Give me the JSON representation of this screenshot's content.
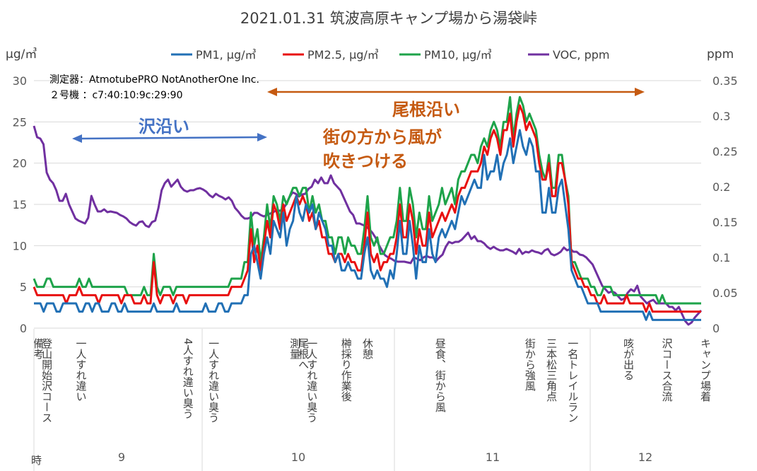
{
  "chart_data": {
    "type": "line",
    "title": "2021.01.31 筑波高原キャンプ場から湯袋峠",
    "ylabel_left": "μg/㎥",
    "ylabel_right": "ppm",
    "ylim_left": [
      0,
      30
    ],
    "ylim_right": [
      0,
      0.35
    ],
    "yticks_left": [
      "0",
      "5",
      "10",
      "15",
      "20",
      "25",
      "30"
    ],
    "yticks_right": [
      "0",
      "0.05",
      "0.1",
      "0.15",
      "0.2",
      "0.25",
      "0.3",
      "0.35"
    ],
    "grid": true,
    "legend_position": "top",
    "device_info": [
      "測定器：AtmotubePRO NotAnotherOne Inc.",
      "２号機 ：c7:40:10:9c:29:90"
    ],
    "annotations": {
      "sawazoi": "沢沿い",
      "onezoi": "尾根沿い",
      "wind_line1": "街の方から風が",
      "wind_line2": "吹きつける"
    },
    "hour_axis_label": "時",
    "hours": [
      "9",
      "10",
      "11",
      "12"
    ],
    "events": [
      {
        "x": 0,
        "text": "備考"
      },
      {
        "x": 2,
        "text": "登山開始沢コース"
      },
      {
        "x": 10,
        "text": "一人すれ違い"
      },
      {
        "x": 35,
        "text": "4人すれ違い臭う"
      },
      {
        "x": 41,
        "text": "一人すれ違い臭う"
      },
      {
        "x": 60,
        "text": "測量"
      },
      {
        "x": 62,
        "text": "尾根へ"
      },
      {
        "x": 64,
        "text": "一人すれ違い臭う"
      },
      {
        "x": 72,
        "text": "榊採り作業後"
      },
      {
        "x": 77,
        "text": "休憩"
      },
      {
        "x": 94,
        "text": "昼食、街から風"
      },
      {
        "x": 115,
        "text": "街から強風"
      },
      {
        "x": 120,
        "text": "三本松三角点"
      },
      {
        "x": 125,
        "text": "一名トレイルラン"
      },
      {
        "x": 138,
        "text": "咳が出る"
      },
      {
        "x": 147,
        "text": "沢コース合流"
      },
      {
        "x": 156,
        "text": "キャンプ場着"
      }
    ],
    "series": [
      {
        "name": "PM1, μg/㎥",
        "axis": "left",
        "color": "#2170b5",
        "values": [
          3,
          3,
          3,
          2,
          3,
          3,
          3,
          2,
          2,
          3,
          3,
          3,
          3,
          3,
          2,
          2,
          3,
          3,
          2,
          3,
          3,
          2,
          2,
          2,
          3,
          3,
          2,
          2,
          3,
          2,
          2,
          2,
          2,
          2,
          2,
          2,
          2,
          3,
          2,
          2,
          2,
          2,
          2,
          2,
          3,
          2,
          2,
          2,
          2,
          2,
          2,
          2,
          2,
          3,
          2,
          2,
          2,
          3,
          3,
          2,
          2,
          3,
          3,
          3,
          3,
          4,
          4,
          9,
          10,
          8,
          6,
          9,
          11,
          9,
          13,
          12,
          11,
          14,
          10,
          12,
          13,
          16,
          14,
          13,
          15,
          14,
          15,
          12,
          14,
          13,
          12,
          10,
          10,
          8,
          9,
          7,
          7,
          8,
          7,
          7,
          6,
          6,
          9,
          11,
          7,
          6,
          7,
          6,
          6,
          5,
          7,
          6,
          9,
          13,
          9,
          9,
          13,
          10,
          6,
          10,
          8,
          8,
          12,
          9,
          8,
          11,
          12,
          11,
          12,
          13,
          12,
          14,
          16,
          15,
          16,
          17,
          18,
          17,
          17,
          21,
          18,
          19,
          19,
          21,
          18,
          20,
          21,
          23,
          20,
          22,
          24,
          22,
          21,
          23,
          22,
          19,
          19,
          14,
          14,
          17,
          14,
          14,
          17,
          18,
          15,
          12,
          7,
          6,
          5,
          5,
          4,
          3,
          3,
          3,
          3,
          2,
          2,
          2,
          2,
          2,
          2,
          2,
          2,
          2,
          2,
          2,
          2,
          2,
          2,
          1,
          2,
          1,
          1,
          1,
          1,
          1,
          1,
          1,
          1,
          1,
          1,
          1,
          1,
          1,
          1,
          1,
          1
        ]
      },
      {
        "name": "PM2.5, μg/㎥",
        "axis": "left",
        "color": "#e81010",
        "values": [
          5,
          4,
          4,
          4,
          4,
          4,
          4,
          4,
          4,
          4,
          3,
          4,
          4,
          4,
          5,
          4,
          4,
          4,
          4,
          4,
          3,
          4,
          4,
          4,
          4,
          4,
          4,
          3,
          4,
          4,
          4,
          3,
          3,
          3,
          4,
          3,
          3,
          8,
          4,
          3,
          4,
          4,
          4,
          3,
          4,
          4,
          4,
          3,
          4,
          4,
          4,
          4,
          4,
          4,
          4,
          4,
          4,
          4,
          4,
          4,
          4,
          5,
          5,
          5,
          5,
          6,
          7,
          12,
          8,
          10,
          7,
          10,
          13,
          11,
          15,
          14,
          12,
          15,
          13,
          14,
          15,
          16,
          15,
          16,
          15,
          13,
          14,
          12,
          13,
          11,
          11,
          9,
          9,
          8,
          9,
          9,
          8,
          9,
          8,
          8,
          7,
          7,
          10,
          14,
          9,
          8,
          9,
          7,
          8,
          8,
          9,
          9,
          11,
          15,
          11,
          11,
          15,
          13,
          9,
          12,
          10,
          10,
          14,
          11,
          12,
          13,
          14,
          13,
          14,
          15,
          14,
          16,
          17,
          17,
          18,
          19,
          19,
          19,
          20,
          22,
          21,
          23,
          24,
          23,
          21,
          24,
          24,
          26,
          22,
          25,
          27,
          26,
          24,
          25,
          24,
          23,
          20,
          18,
          18,
          20,
          16,
          16,
          20,
          20,
          18,
          15,
          8,
          7,
          6,
          6,
          5,
          5,
          4,
          4,
          3,
          3,
          4,
          3,
          3,
          3,
          3,
          3,
          3,
          4,
          3,
          3,
          3,
          3,
          3,
          2,
          3,
          2,
          2,
          2,
          2,
          2,
          2,
          2,
          2,
          2,
          2,
          2,
          2,
          2,
          2,
          2,
          2
        ]
      },
      {
        "name": "PM10, μg/㎥",
        "axis": "left",
        "color": "#1ea34a",
        "values": [
          6,
          5,
          5,
          5,
          6,
          6,
          5,
          5,
          5,
          5,
          5,
          5,
          5,
          5,
          6,
          5,
          5,
          6,
          5,
          5,
          5,
          5,
          5,
          5,
          5,
          5,
          5,
          5,
          5,
          4,
          4,
          4,
          4,
          4,
          5,
          4,
          4,
          9,
          5,
          4,
          5,
          5,
          5,
          4,
          5,
          5,
          5,
          5,
          5,
          5,
          5,
          5,
          5,
          5,
          5,
          5,
          5,
          5,
          5,
          5,
          5,
          6,
          6,
          6,
          6,
          8,
          8,
          14,
          10,
          12,
          8,
          11,
          15,
          12,
          16,
          15,
          13,
          16,
          15,
          16,
          17,
          17,
          16,
          17,
          17,
          14,
          16,
          14,
          15,
          13,
          13,
          11,
          11,
          9,
          11,
          11,
          9,
          11,
          10,
          10,
          9,
          9,
          12,
          16,
          11,
          10,
          11,
          9,
          9,
          10,
          11,
          11,
          13,
          17,
          13,
          13,
          17,
          15,
          11,
          14,
          12,
          12,
          16,
          13,
          14,
          15,
          17,
          15,
          16,
          17,
          15,
          18,
          19,
          19,
          20,
          21,
          21,
          20,
          22,
          23,
          22,
          24,
          25,
          24,
          22,
          25,
          25,
          28,
          23,
          26,
          28,
          27,
          25,
          26,
          25,
          24,
          21,
          19,
          18,
          21,
          17,
          17,
          21,
          21,
          18,
          16,
          8,
          8,
          7,
          6,
          6,
          6,
          5,
          5,
          4,
          4,
          5,
          5,
          5,
          4,
          4,
          4,
          4,
          4,
          4,
          4,
          4,
          4,
          4,
          4,
          4,
          4,
          4,
          3,
          4,
          3,
          3,
          3,
          3,
          3,
          3,
          3,
          3,
          3,
          3,
          3,
          3
        ]
      },
      {
        "name": "VOC, ppm",
        "axis": "right",
        "color": "#7030a0",
        "values": [
          0.286,
          0.27,
          0.268,
          0.26,
          0.22,
          0.21,
          0.205,
          0.195,
          0.18,
          0.18,
          0.19,
          0.175,
          0.165,
          0.155,
          0.152,
          0.15,
          0.148,
          0.156,
          0.187,
          0.175,
          0.165,
          0.165,
          0.168,
          0.164,
          0.165,
          0.164,
          0.163,
          0.16,
          0.158,
          0.155,
          0.15,
          0.147,
          0.145,
          0.15,
          0.151,
          0.145,
          0.143,
          0.15,
          0.152,
          0.17,
          0.195,
          0.205,
          0.21,
          0.2,
          0.205,
          0.21,
          0.2,
          0.195,
          0.193,
          0.195,
          0.195,
          0.197,
          0.198,
          0.196,
          0.193,
          0.188,
          0.185,
          0.19,
          0.187,
          0.185,
          0.182,
          0.185,
          0.18,
          0.17,
          0.165,
          0.159,
          0.155,
          0.155,
          0.157,
          0.163,
          0.163,
          0.16,
          0.158,
          0.16,
          0.162,
          0.164,
          0.167,
          0.166,
          0.168,
          0.175,
          0.185,
          0.192,
          0.19,
          0.186,
          0.189,
          0.19,
          0.197,
          0.2,
          0.21,
          0.205,
          0.213,
          0.205,
          0.205,
          0.216,
          0.205,
          0.2,
          0.195,
          0.185,
          0.175,
          0.165,
          0.16,
          0.148,
          0.148,
          0.146,
          0.144,
          0.14,
          0.135,
          0.128,
          0.118,
          0.11,
          0.103,
          0.1,
          0.098,
          0.095,
          0.094,
          0.094,
          0.094,
          0.093,
          0.092,
          0.1,
          0.098,
          0.096,
          0.1,
          0.102,
          0.1,
          0.1,
          0.095,
          0.1,
          0.104,
          0.115,
          0.122,
          0.12,
          0.122,
          0.122,
          0.125,
          0.13,
          0.135,
          0.126,
          0.13,
          0.123,
          0.123,
          0.12,
          0.115,
          0.112,
          0.115,
          0.112,
          0.11,
          0.11,
          0.112,
          0.11,
          0.108,
          0.105,
          0.112,
          0.105,
          0.108,
          0.107,
          0.11,
          0.108,
          0.107,
          0.105,
          0.11,
          0.112,
          0.105,
          0.103,
          0.105,
          0.108,
          0.114,
          0.11,
          0.112,
          0.108,
          0.108,
          0.104,
          0.103,
          0.1,
          0.095,
          0.09,
          0.08,
          0.07,
          0.06,
          0.055,
          0.05,
          0.052,
          0.05,
          0.045,
          0.04,
          0.042,
          0.05,
          0.055,
          0.052,
          0.06,
          0.045,
          0.04,
          0.035,
          0.038,
          0.04,
          0.035,
          0.035,
          0.035,
          0.035,
          0.03,
          0.03,
          0.025,
          0.03,
          0.02,
          0.01,
          0.005,
          0.008,
          0.015,
          0.02,
          0.025
        ]
      }
    ]
  }
}
